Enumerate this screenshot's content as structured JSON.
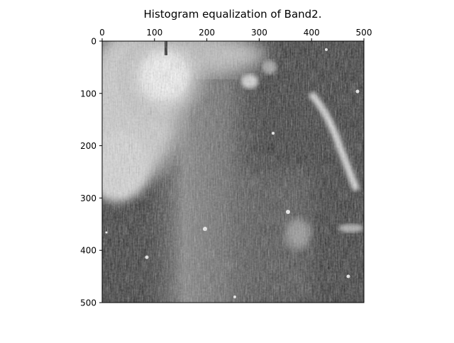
{
  "figure": {
    "title": "Histogram equalization of Band2.",
    "background": "#ffffff",
    "image": {
      "description_kind": "grayscale astronomical band image, histogram equalized",
      "colormap": "gray",
      "xlim": [
        0,
        500
      ],
      "ylim": [
        500,
        0
      ]
    },
    "x_axis": {
      "position": "top",
      "ticks": [
        0,
        100,
        200,
        300,
        400,
        500
      ],
      "tick_labels": [
        "0",
        "100",
        "200",
        "300",
        "400",
        "500"
      ]
    },
    "y_axis": {
      "position": "left",
      "ticks": [
        0,
        100,
        200,
        300,
        400,
        500
      ],
      "tick_labels": [
        "0",
        "100",
        "200",
        "300",
        "400",
        "500"
      ]
    }
  }
}
